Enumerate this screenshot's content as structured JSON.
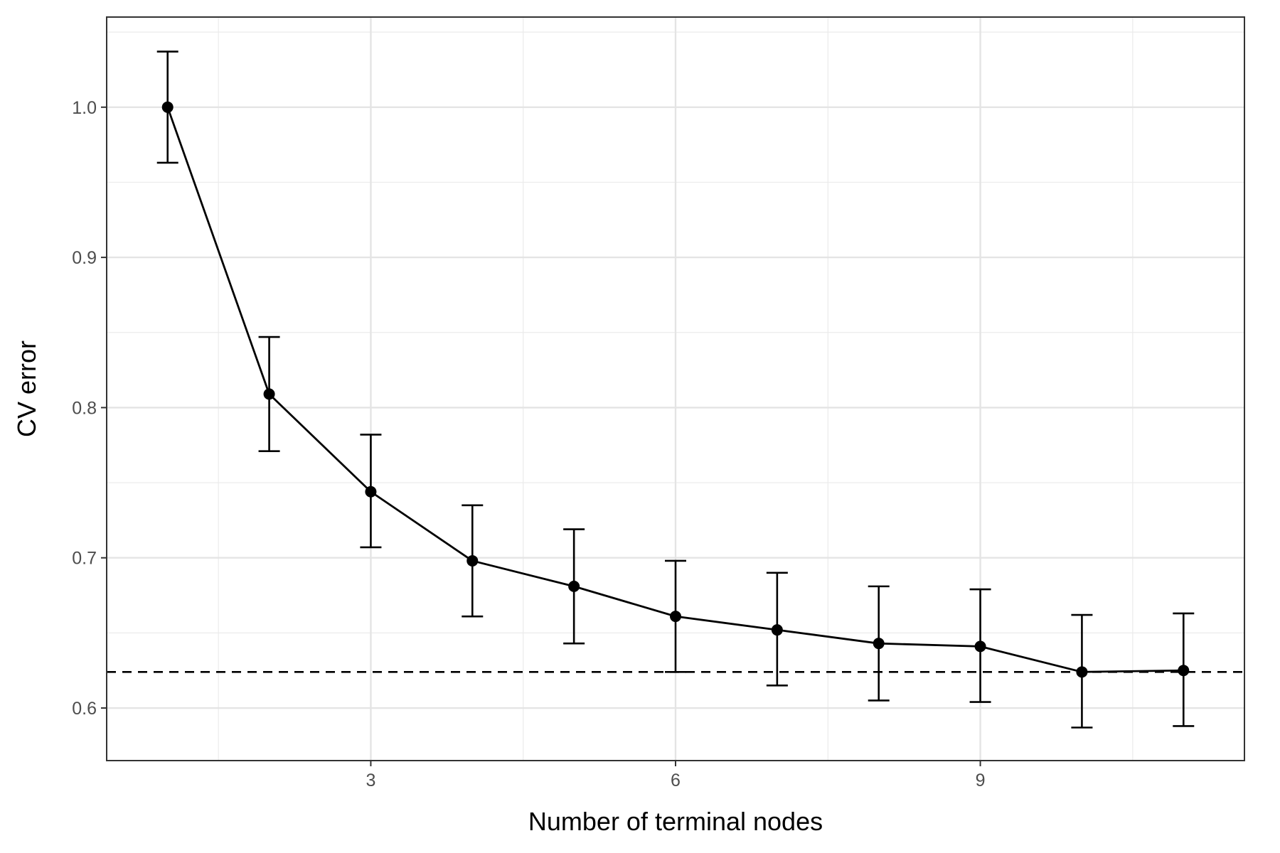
{
  "chart_data": {
    "type": "line",
    "title": "",
    "xlabel": "Number of terminal nodes",
    "ylabel": "CV error",
    "xlim": [
      0.4,
      11.6
    ],
    "ylim": [
      0.565,
      1.06
    ],
    "x_ticks": [
      3,
      6,
      9
    ],
    "x_tick_labels": [
      "3",
      "6",
      "9"
    ],
    "x_minor_ticks": [
      1.5,
      4.5,
      7.5,
      10.5
    ],
    "y_ticks": [
      0.6,
      0.7,
      0.8,
      0.9,
      1.0
    ],
    "y_tick_labels": [
      "0.6",
      "0.7",
      "0.8",
      "0.9",
      "1.0"
    ],
    "y_minor_ticks": [
      0.65,
      0.75,
      0.85,
      0.95,
      1.05
    ],
    "grid": true,
    "series": [
      {
        "x": [
          1,
          2,
          3,
          4,
          5,
          6,
          7,
          8,
          9,
          10,
          11
        ],
        "y": [
          1.0,
          0.809,
          0.744,
          0.698,
          0.681,
          0.661,
          0.652,
          0.643,
          0.641,
          0.624,
          0.625
        ],
        "err_low": [
          0.963,
          0.771,
          0.707,
          0.661,
          0.643,
          0.624,
          0.615,
          0.605,
          0.604,
          0.587,
          0.588
        ],
        "err_high": [
          1.037,
          0.847,
          0.782,
          0.735,
          0.719,
          0.698,
          0.69,
          0.681,
          0.679,
          0.662,
          0.663
        ],
        "color": "#000000"
      }
    ],
    "reference_line": {
      "y": 0.624,
      "style": "dashed",
      "color": "#000000"
    }
  }
}
